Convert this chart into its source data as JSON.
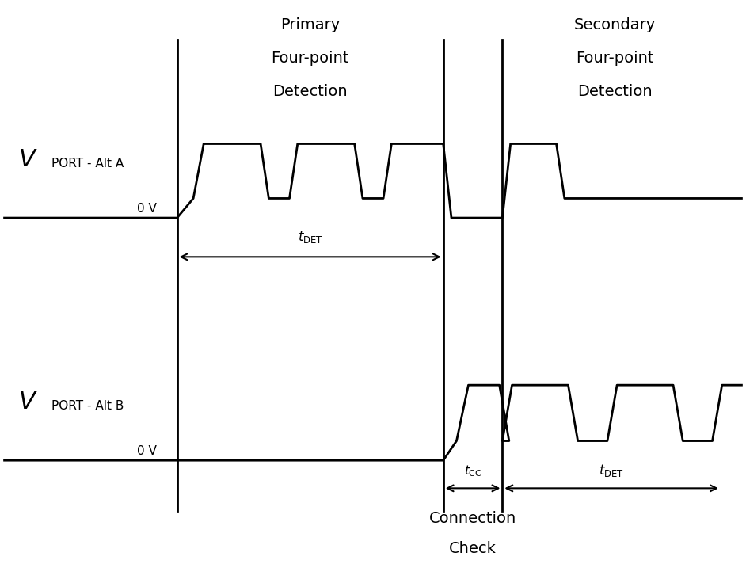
{
  "bg_color": "#ffffff",
  "line_color": "#000000",
  "lw": 2.0,
  "v1": 0.235,
  "v2": 0.595,
  "v3": 0.675,
  "y0A": 0.615,
  "y1A": 0.65,
  "y2A": 0.748,
  "y0B": 0.18,
  "y1B": 0.215,
  "y2B": 0.315,
  "primary_label": [
    "Primary",
    "Four-point",
    "Detection"
  ],
  "secondary_label": [
    "Secondary",
    "Four-point",
    "Detection"
  ],
  "cc_label": [
    "Connection",
    "Check"
  ],
  "vport_a": "V",
  "vport_a_sub": "PORT - Alt A",
  "zero_a": "0 V",
  "vport_b": "V",
  "vport_b_sub": "PORT - Alt B",
  "zero_b": "0 V",
  "tdet_text": "t",
  "tdet_sub": "DET",
  "tcc_text": "t",
  "tcc_sub": "CC",
  "fs_title": 14,
  "fs_label": 12,
  "fs_small": 11
}
